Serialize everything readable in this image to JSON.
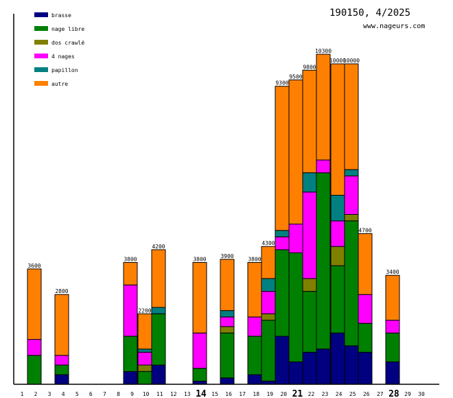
{
  "chart_data": {
    "type": "bar",
    "stacked": true,
    "title": "190150, 4/2025",
    "subtitle": "www.nageurs.com",
    "xlabel": "",
    "ylabel": "",
    "ylim": [
      0,
      11000
    ],
    "grid": false,
    "legend_position": "top-left",
    "categories": [
      "1",
      "2",
      "3",
      "4",
      "5",
      "6",
      "7",
      "8",
      "9",
      "10",
      "11",
      "12",
      "13",
      "14",
      "15",
      "16",
      "17",
      "18",
      "19",
      "20",
      "21",
      "22",
      "23",
      "24",
      "25",
      "26",
      "27",
      "28",
      "29",
      "30"
    ],
    "bold_categories": [
      "14",
      "21",
      "28"
    ],
    "series": [
      {
        "name": "brasse",
        "color": "#000080",
        "values": [
          0,
          0,
          0,
          300,
          0,
          0,
          0,
          0,
          400,
          0,
          600,
          0,
          0,
          100,
          0,
          200,
          0,
          300,
          100,
          1500,
          700,
          1000,
          1100,
          1600,
          1200,
          1000,
          0,
          700,
          0,
          0
        ]
      },
      {
        "name": "nage libre",
        "color": "#008000",
        "values": [
          0,
          900,
          0,
          300,
          0,
          0,
          0,
          0,
          1100,
          400,
          1600,
          0,
          0,
          400,
          0,
          1400,
          0,
          1200,
          1900,
          2700,
          3400,
          1900,
          5500,
          2100,
          3900,
          900,
          0,
          900,
          0,
          0
        ]
      },
      {
        "name": "dos crawlé",
        "color": "#808000",
        "values": [
          0,
          0,
          0,
          0,
          0,
          0,
          0,
          0,
          0,
          200,
          0,
          0,
          0,
          0,
          0,
          200,
          0,
          0,
          200,
          0,
          0,
          400,
          0,
          600,
          200,
          0,
          0,
          0,
          0,
          0
        ]
      },
      {
        "name": "4 nages",
        "color": "#ff00ff",
        "values": [
          0,
          500,
          0,
          300,
          0,
          0,
          0,
          0,
          1600,
          400,
          0,
          0,
          0,
          1100,
          0,
          300,
          0,
          600,
          700,
          400,
          900,
          2700,
          400,
          800,
          1200,
          900,
          0,
          400,
          0,
          0
        ]
      },
      {
        "name": "papillon",
        "color": "#008080",
        "values": [
          0,
          0,
          0,
          0,
          0,
          0,
          0,
          0,
          0,
          100,
          200,
          0,
          0,
          0,
          0,
          200,
          0,
          0,
          400,
          200,
          0,
          600,
          0,
          800,
          200,
          0,
          0,
          0,
          0,
          0
        ]
      },
      {
        "name": "autre",
        "color": "#ff8000",
        "values": [
          0,
          2200,
          0,
          1900,
          0,
          0,
          0,
          0,
          700,
          1100,
          1800,
          0,
          0,
          2200,
          0,
          1600,
          0,
          1700,
          1000,
          4500,
          4500,
          3200,
          3300,
          4100,
          3300,
          1900,
          0,
          1400,
          0,
          0
        ]
      }
    ],
    "totals": [
      0,
      3600,
      0,
      2800,
      0,
      0,
      0,
      0,
      3800,
      2200,
      4200,
      0,
      0,
      3800,
      0,
      3900,
      0,
      3800,
      4300,
      9300,
      9500,
      9800,
      10300,
      10000,
      10000,
      4700,
      0,
      3400,
      0,
      0
    ]
  }
}
